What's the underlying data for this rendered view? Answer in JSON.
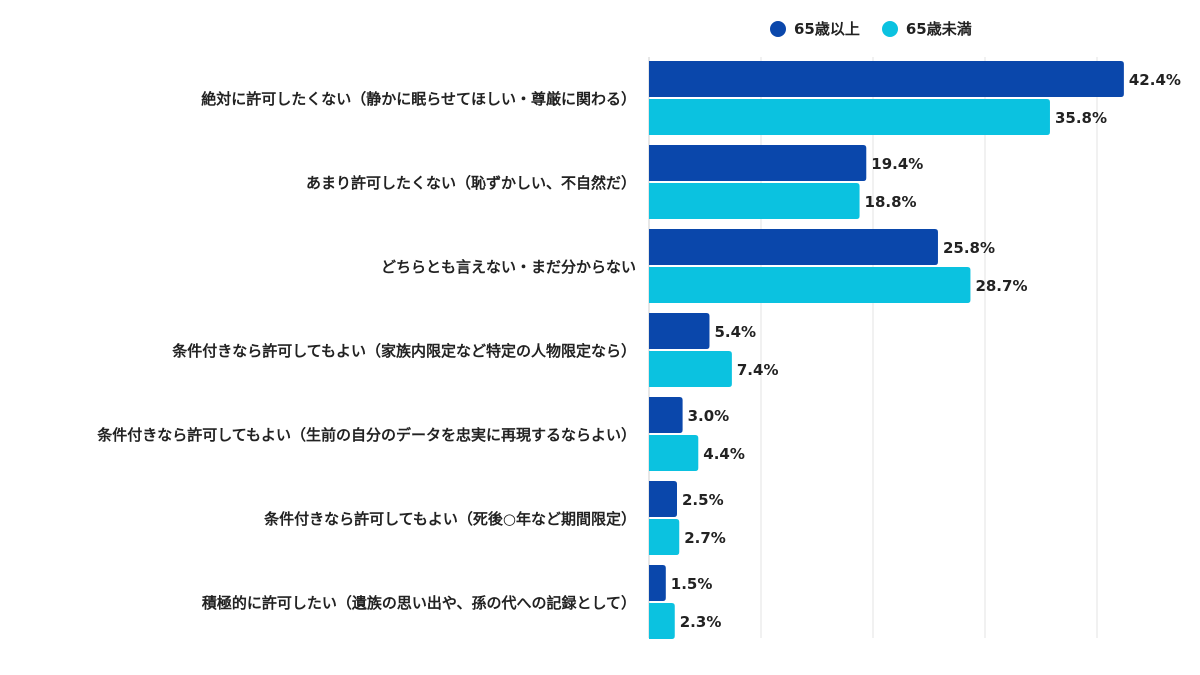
{
  "chart_data": {
    "type": "bar",
    "orientation": "horizontal",
    "title": "",
    "xlabel": "",
    "ylabel": "",
    "xlim": [
      0,
      50
    ],
    "grid": true,
    "legend_position": "top-right",
    "unit": "%",
    "categories": [
      "絶対に許可したくない（静かに眠らせてほしい・尊厳に関わる）",
      "あまり許可したくない（恥ずかしい、不自然だ）",
      "どちらとも言えない・まだ分からない",
      "条件付きなら許可してもよい（家族内限定など特定の人物限定なら）",
      "条件付きなら許可してもよい（生前の自分のデータを忠実に再現するならよい）",
      "条件付きなら許可してもよい（死後○年など期間限定）",
      "積極的に許可したい（遺族の思い出や、孫の代への記録として）"
    ],
    "series": [
      {
        "name": "65歳以上",
        "color": "#0a47ab",
        "values": [
          42.4,
          19.4,
          25.8,
          5.4,
          3.0,
          2.5,
          1.5
        ]
      },
      {
        "name": "65歳未満",
        "color": "#0bc2e0",
        "values": [
          35.8,
          18.8,
          28.7,
          7.4,
          4.4,
          2.7,
          2.3
        ]
      }
    ]
  }
}
